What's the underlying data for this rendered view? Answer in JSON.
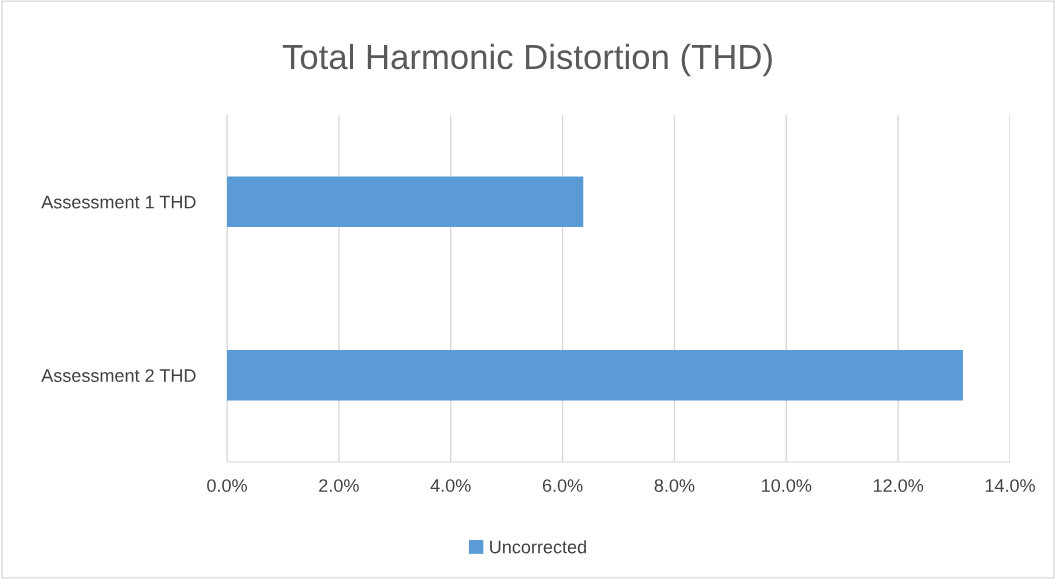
{
  "chart_data": {
    "type": "bar",
    "orientation": "horizontal",
    "title": "Total Harmonic Distortion (THD)",
    "categories": [
      "Assessment 1 THD",
      "Assessment 2 THD"
    ],
    "series": [
      {
        "name": "Uncorrected",
        "color": "#5b9bd5",
        "values": [
          0.0637,
          0.1316
        ]
      }
    ],
    "xlim": [
      0,
      0.14
    ],
    "xticks": [
      {
        "value": 0,
        "label": "0.0%"
      },
      {
        "value": 0.02,
        "label": "2.0%"
      },
      {
        "value": 0.04,
        "label": "4.0%"
      },
      {
        "value": 0.06,
        "label": "6.0%"
      },
      {
        "value": 0.08,
        "label": "8.0%"
      },
      {
        "value": 0.1,
        "label": "10.0%"
      },
      {
        "value": 0.12,
        "label": "12.0%"
      },
      {
        "value": 0.14,
        "label": "14.0%"
      }
    ],
    "grid": "x",
    "legend": "bottom"
  }
}
